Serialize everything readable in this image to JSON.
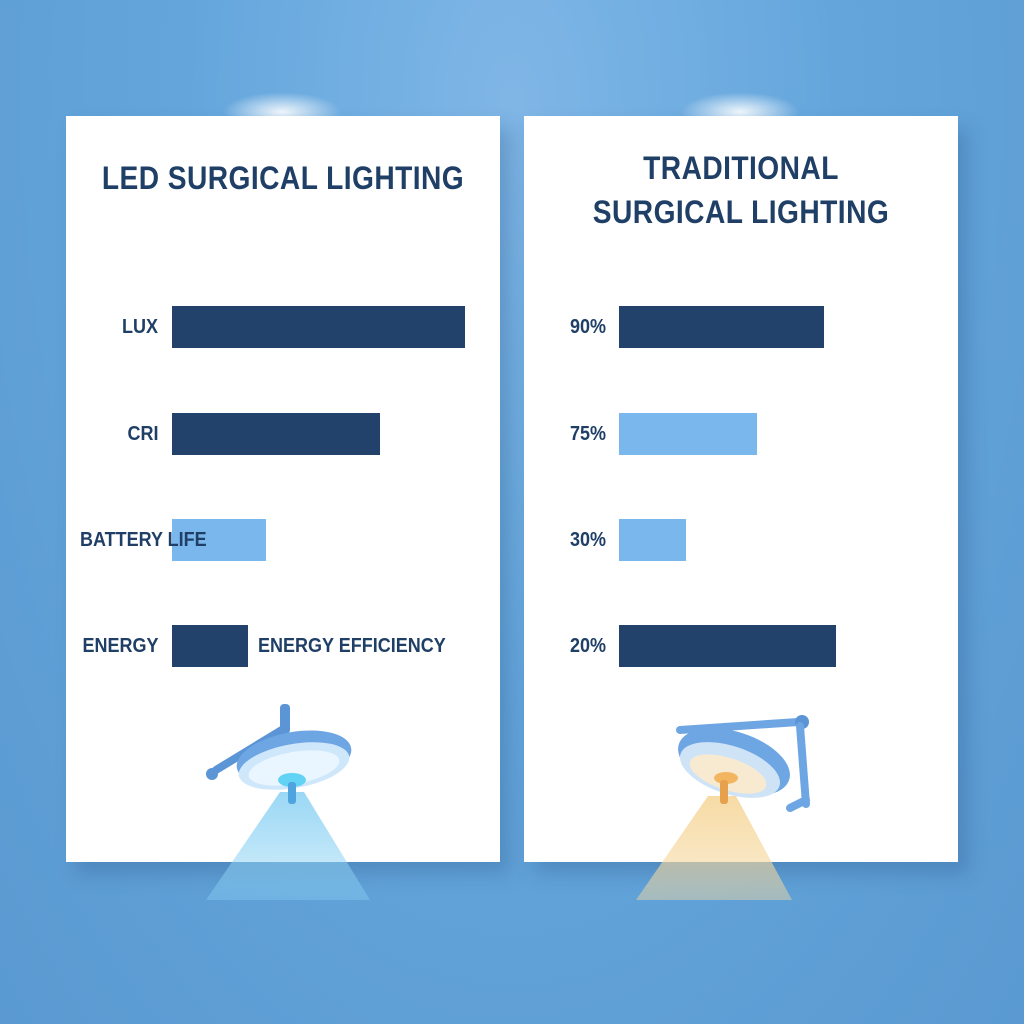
{
  "colors": {
    "bar_dark": "#23426b",
    "bar_light": "#7ab7ec",
    "text": "#1f3f66",
    "led_beam": "#8fd3f4",
    "traditional_beam": "#f6d9a0"
  },
  "icons": [
    "led-surgical-lamp-icon",
    "traditional-surgical-lamp-icon"
  ],
  "chart_data": [
    {
      "type": "bar",
      "orientation": "horizontal",
      "title": "LED SURGICAL LIGHTING",
      "categories": [
        "LUX",
        "CRI",
        "BATTERY LIFE",
        "ENERGY"
      ],
      "values": [
        100,
        71,
        32,
        26
      ],
      "value_unit": "relative",
      "bar_colors": [
        "dark",
        "dark",
        "light",
        "dark"
      ],
      "annotations": [
        "ENERGY EFFICIENCY"
      ],
      "xlim": [
        0,
        100
      ],
      "grid": false,
      "legend": "none"
    },
    {
      "type": "bar",
      "orientation": "horizontal",
      "title_lines": [
        "TRADITIONAL",
        "SURGICAL LIGHTING"
      ],
      "categories": [
        "90%",
        "75%",
        "30%",
        "20%"
      ],
      "values": [
        70,
        47,
        23,
        74
      ],
      "value_unit": "relative",
      "bar_colors": [
        "dark",
        "light",
        "light",
        "dark"
      ],
      "xlim": [
        0,
        100
      ],
      "grid": false,
      "legend": "none"
    }
  ]
}
